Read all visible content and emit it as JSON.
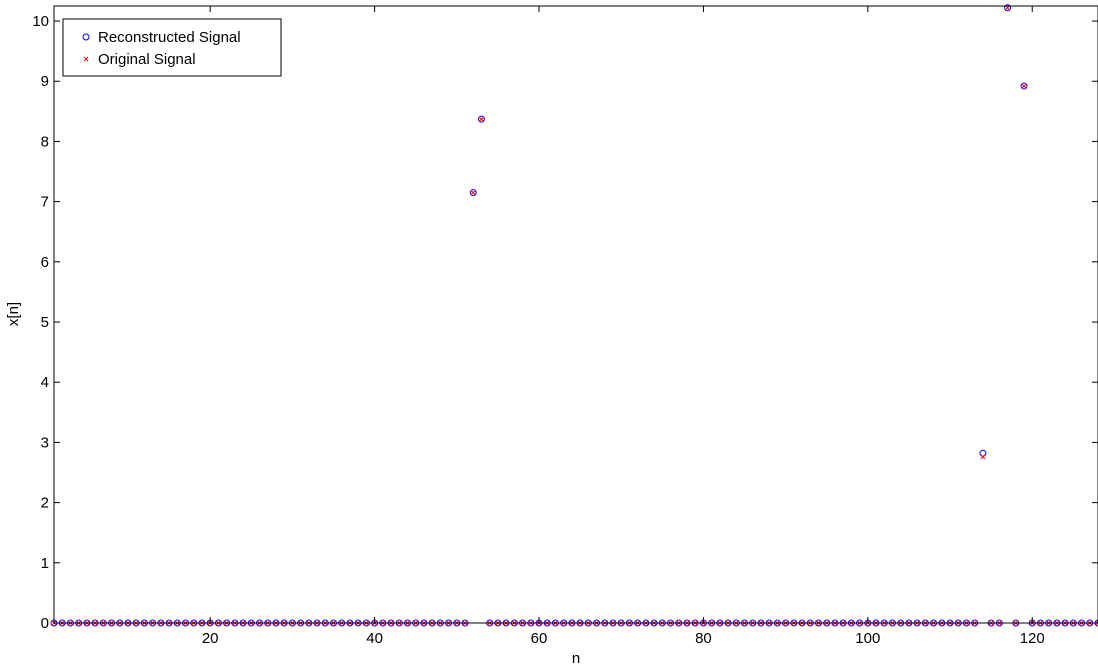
{
  "chart_data": {
    "type": "scatter",
    "xlabel": "n",
    "ylabel": "x[n]",
    "xlim": [
      1,
      128
    ],
    "ylim": [
      0,
      10.25
    ],
    "xticks": [
      20,
      40,
      60,
      80,
      100,
      120
    ],
    "yticks": [
      0,
      1,
      2,
      3,
      4,
      5,
      6,
      7,
      8,
      9,
      10
    ],
    "grid": false,
    "legend": "top-left",
    "series": [
      {
        "name": "Reconstructed Signal",
        "marker": "circle",
        "color": "#0000ff",
        "points": [
          [
            1,
            0
          ],
          [
            2,
            0
          ],
          [
            3,
            0
          ],
          [
            4,
            0
          ],
          [
            5,
            0
          ],
          [
            6,
            0
          ],
          [
            7,
            0
          ],
          [
            8,
            0
          ],
          [
            9,
            0
          ],
          [
            10,
            0
          ],
          [
            11,
            0
          ],
          [
            12,
            0
          ],
          [
            13,
            0
          ],
          [
            14,
            0
          ],
          [
            15,
            0
          ],
          [
            16,
            0
          ],
          [
            17,
            0
          ],
          [
            18,
            0
          ],
          [
            19,
            0
          ],
          [
            20,
            0
          ],
          [
            21,
            0
          ],
          [
            22,
            0
          ],
          [
            23,
            0
          ],
          [
            24,
            0
          ],
          [
            25,
            0
          ],
          [
            26,
            0
          ],
          [
            27,
            0
          ],
          [
            28,
            0
          ],
          [
            29,
            0
          ],
          [
            30,
            0
          ],
          [
            31,
            0
          ],
          [
            32,
            0
          ],
          [
            33,
            0
          ],
          [
            34,
            0
          ],
          [
            35,
            0
          ],
          [
            36,
            0
          ],
          [
            37,
            0
          ],
          [
            38,
            0
          ],
          [
            39,
            0
          ],
          [
            40,
            0
          ],
          [
            41,
            0
          ],
          [
            42,
            0
          ],
          [
            43,
            0
          ],
          [
            44,
            0
          ],
          [
            45,
            0
          ],
          [
            46,
            0
          ],
          [
            47,
            0
          ],
          [
            48,
            0
          ],
          [
            49,
            0
          ],
          [
            50,
            0
          ],
          [
            51,
            0
          ],
          [
            52,
            7.15
          ],
          [
            53,
            8.37
          ],
          [
            54,
            0
          ],
          [
            55,
            0
          ],
          [
            56,
            0
          ],
          [
            57,
            0
          ],
          [
            58,
            0
          ],
          [
            59,
            0
          ],
          [
            60,
            0
          ],
          [
            61,
            0
          ],
          [
            62,
            0
          ],
          [
            63,
            0
          ],
          [
            64,
            0
          ],
          [
            65,
            0
          ],
          [
            66,
            0
          ],
          [
            67,
            0
          ],
          [
            68,
            0
          ],
          [
            69,
            0
          ],
          [
            70,
            0
          ],
          [
            71,
            0
          ],
          [
            72,
            0
          ],
          [
            73,
            0
          ],
          [
            74,
            0
          ],
          [
            75,
            0
          ],
          [
            76,
            0
          ],
          [
            77,
            0
          ],
          [
            78,
            0
          ],
          [
            79,
            0
          ],
          [
            80,
            0
          ],
          [
            81,
            0
          ],
          [
            82,
            0
          ],
          [
            83,
            0
          ],
          [
            84,
            0
          ],
          [
            85,
            0
          ],
          [
            86,
            0
          ],
          [
            87,
            0
          ],
          [
            88,
            0
          ],
          [
            89,
            0
          ],
          [
            90,
            0
          ],
          [
            91,
            0
          ],
          [
            92,
            0
          ],
          [
            93,
            0
          ],
          [
            94,
            0
          ],
          [
            95,
            0
          ],
          [
            96,
            0
          ],
          [
            97,
            0
          ],
          [
            98,
            0
          ],
          [
            99,
            0
          ],
          [
            100,
            0
          ],
          [
            101,
            0
          ],
          [
            102,
            0
          ],
          [
            103,
            0
          ],
          [
            104,
            0
          ],
          [
            105,
            0
          ],
          [
            106,
            0
          ],
          [
            107,
            0
          ],
          [
            108,
            0
          ],
          [
            109,
            0
          ],
          [
            110,
            0
          ],
          [
            111,
            0
          ],
          [
            112,
            0
          ],
          [
            113,
            0
          ],
          [
            114,
            2.82
          ],
          [
            115,
            0
          ],
          [
            116,
            0
          ],
          [
            117,
            10.22
          ],
          [
            118,
            0
          ],
          [
            119,
            8.92
          ],
          [
            120,
            0
          ],
          [
            121,
            0
          ],
          [
            122,
            0
          ],
          [
            123,
            0
          ],
          [
            124,
            0
          ],
          [
            125,
            0
          ],
          [
            126,
            0
          ],
          [
            127,
            0
          ],
          [
            128,
            0
          ]
        ]
      },
      {
        "name": "Original Signal",
        "marker": "x",
        "color": "#ff0000",
        "points": [
          [
            1,
            0
          ],
          [
            2,
            0
          ],
          [
            3,
            0
          ],
          [
            4,
            0
          ],
          [
            5,
            0
          ],
          [
            6,
            0
          ],
          [
            7,
            0
          ],
          [
            8,
            0
          ],
          [
            9,
            0
          ],
          [
            10,
            0
          ],
          [
            11,
            0
          ],
          [
            12,
            0
          ],
          [
            13,
            0
          ],
          [
            14,
            0
          ],
          [
            15,
            0
          ],
          [
            16,
            0
          ],
          [
            17,
            0
          ],
          [
            18,
            0
          ],
          [
            19,
            0
          ],
          [
            20,
            0
          ],
          [
            21,
            0
          ],
          [
            22,
            0
          ],
          [
            23,
            0
          ],
          [
            24,
            0
          ],
          [
            25,
            0
          ],
          [
            26,
            0
          ],
          [
            27,
            0
          ],
          [
            28,
            0
          ],
          [
            29,
            0
          ],
          [
            30,
            0
          ],
          [
            31,
            0
          ],
          [
            32,
            0
          ],
          [
            33,
            0
          ],
          [
            34,
            0
          ],
          [
            35,
            0
          ],
          [
            36,
            0
          ],
          [
            37,
            0
          ],
          [
            38,
            0
          ],
          [
            39,
            0
          ],
          [
            40,
            0
          ],
          [
            41,
            0
          ],
          [
            42,
            0
          ],
          [
            43,
            0
          ],
          [
            44,
            0
          ],
          [
            45,
            0
          ],
          [
            46,
            0
          ],
          [
            47,
            0
          ],
          [
            48,
            0
          ],
          [
            49,
            0
          ],
          [
            50,
            0
          ],
          [
            51,
            0
          ],
          [
            52,
            7.15
          ],
          [
            53,
            8.37
          ],
          [
            54,
            0
          ],
          [
            55,
            0
          ],
          [
            56,
            0
          ],
          [
            57,
            0
          ],
          [
            58,
            0
          ],
          [
            59,
            0
          ],
          [
            60,
            0
          ],
          [
            61,
            0
          ],
          [
            62,
            0
          ],
          [
            63,
            0
          ],
          [
            64,
            0
          ],
          [
            65,
            0
          ],
          [
            66,
            0
          ],
          [
            67,
            0
          ],
          [
            68,
            0
          ],
          [
            69,
            0
          ],
          [
            70,
            0
          ],
          [
            71,
            0
          ],
          [
            72,
            0
          ],
          [
            73,
            0
          ],
          [
            74,
            0
          ],
          [
            75,
            0
          ],
          [
            76,
            0
          ],
          [
            77,
            0
          ],
          [
            78,
            0
          ],
          [
            79,
            0
          ],
          [
            80,
            0
          ],
          [
            81,
            0
          ],
          [
            82,
            0
          ],
          [
            83,
            0
          ],
          [
            84,
            0
          ],
          [
            85,
            0
          ],
          [
            86,
            0
          ],
          [
            87,
            0
          ],
          [
            88,
            0
          ],
          [
            89,
            0
          ],
          [
            90,
            0
          ],
          [
            91,
            0
          ],
          [
            92,
            0
          ],
          [
            93,
            0
          ],
          [
            94,
            0
          ],
          [
            95,
            0
          ],
          [
            96,
            0
          ],
          [
            97,
            0
          ],
          [
            98,
            0
          ],
          [
            99,
            0
          ],
          [
            100,
            0
          ],
          [
            101,
            0
          ],
          [
            102,
            0
          ],
          [
            103,
            0
          ],
          [
            104,
            0
          ],
          [
            105,
            0
          ],
          [
            106,
            0
          ],
          [
            107,
            0
          ],
          [
            108,
            0
          ],
          [
            109,
            0
          ],
          [
            110,
            0
          ],
          [
            111,
            0
          ],
          [
            112,
            0
          ],
          [
            113,
            0
          ],
          [
            114,
            2.76
          ],
          [
            115,
            0
          ],
          [
            116,
            0
          ],
          [
            117,
            10.22
          ],
          [
            118,
            0
          ],
          [
            119,
            8.92
          ],
          [
            120,
            0
          ],
          [
            121,
            0
          ],
          [
            122,
            0
          ],
          [
            123,
            0
          ],
          [
            124,
            0
          ],
          [
            125,
            0
          ],
          [
            126,
            0
          ],
          [
            127,
            0
          ],
          [
            128,
            0
          ]
        ]
      }
    ]
  }
}
